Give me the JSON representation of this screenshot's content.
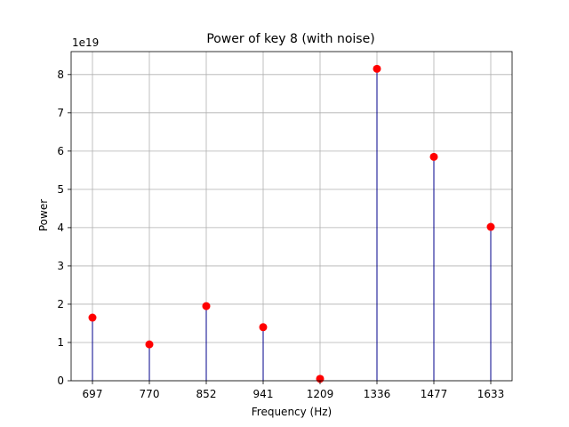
{
  "chart_data": {
    "type": "stem",
    "title": "Power of key 8 (with noise)",
    "xlabel": "Frequency (Hz)",
    "ylabel": "Power",
    "y_multiplier_label": "1e19",
    "categories": [
      "697",
      "770",
      "852",
      "941",
      "1209",
      "1336",
      "1477",
      "1633"
    ],
    "values": [
      1.65,
      0.95,
      1.95,
      1.4,
      0.05,
      8.15,
      5.85,
      4.02
    ],
    "ylim": [
      0,
      8.6
    ],
    "yticks": [
      0,
      1,
      2,
      3,
      4,
      5,
      6,
      7,
      8
    ],
    "grid": true,
    "colors": {
      "marker": "#ff0000",
      "stem": "#00008b"
    }
  }
}
